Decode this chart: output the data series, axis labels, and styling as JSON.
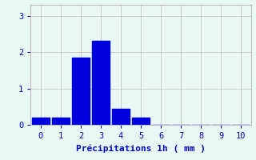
{
  "bar_centers": [
    0,
    1,
    2,
    3,
    4,
    5,
    6,
    7,
    8,
    9,
    10
  ],
  "bar_values": [
    0.2,
    0.2,
    1.85,
    2.3,
    0.45,
    0.2,
    0,
    0,
    0,
    0,
    0
  ],
  "bar_color": "#0000dd",
  "bar_width": 0.85,
  "xlabel": "Précipitations 1h ( mm )",
  "xlim": [
    -0.5,
    10.5
  ],
  "ylim": [
    0,
    3.3
  ],
  "yticks": [
    0,
    1,
    2,
    3
  ],
  "xticks": [
    0,
    1,
    2,
    3,
    4,
    5,
    6,
    7,
    8,
    9,
    10
  ],
  "background_color": "#e8f8f4",
  "grid_color": "#bbbbbb",
  "tick_color": "#0000cc",
  "label_color": "#0000cc",
  "font_size": 7.5,
  "label_fontsize": 8
}
